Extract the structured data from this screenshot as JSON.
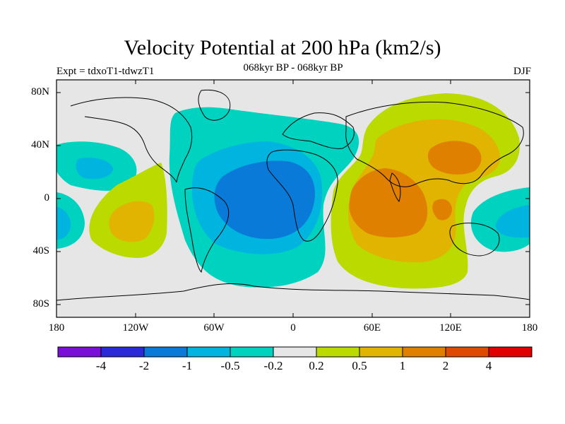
{
  "title": "Velocity Potential at 200 hPa (km2/s)",
  "subtitle": "068kyr BP - 068kyr BP",
  "left_label": "Expt = tdxoT1-tdwzT1",
  "right_label": "DJF",
  "lat_labels": [
    "80N",
    "40N",
    "0",
    "40S",
    "80S"
  ],
  "lon_labels": [
    "180",
    "120W",
    "60W",
    "0",
    "60E",
    "120E",
    "180"
  ],
  "colorbar": {
    "labels": [
      "-4",
      "-2",
      "-1",
      "-0.5",
      "-0.2",
      "0.2",
      "0.5",
      "1",
      "2",
      "4"
    ],
    "colors": [
      "#7a10d8",
      "#2a2ad8",
      "#0a7ad8",
      "#00b4e0",
      "#00d2c0",
      "#e6e6e6",
      "#bada00",
      "#e0b400",
      "#e08000",
      "#e04a00",
      "#e00000"
    ]
  },
  "palette": {
    "ocean_bg": "#e6e6e6",
    "neg_weak": "#00d2c0",
    "neg_mid": "#00b4e0",
    "neg_strong": "#0a7ad8",
    "pos_weak": "#bada00",
    "pos_mid": "#e0b400",
    "pos_strong": "#e08000"
  }
}
